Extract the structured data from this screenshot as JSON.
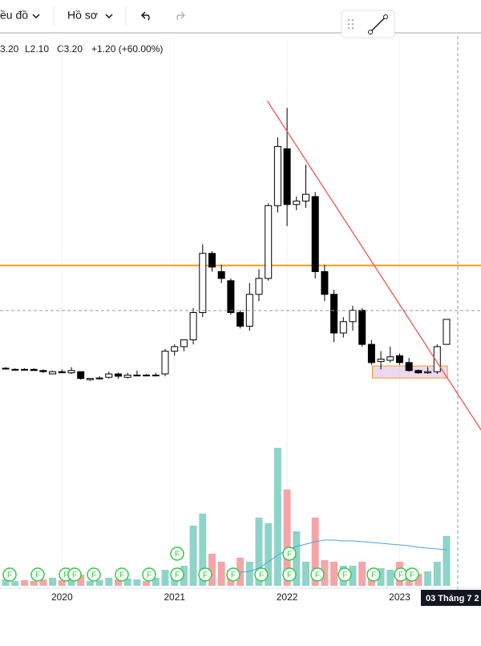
{
  "toolbar": {
    "chart_menu": "ều đồ",
    "profile_menu": "Hồ sơ"
  },
  "legend": {
    "open_high": "3.20",
    "low": "L2.10",
    "close": "C3.20",
    "change": "+1.20 (+60.00%)"
  },
  "crosshair_date": "03 Tháng 7 2",
  "dividend_marker": "F",
  "chart_data": {
    "type": "candlestick",
    "categories": [
      null,
      null,
      null,
      null,
      null,
      null,
      "2020",
      null,
      null,
      null,
      null,
      null,
      null,
      null,
      null,
      null,
      null,
      null,
      "2021",
      null,
      null,
      null,
      null,
      null,
      null,
      null,
      null,
      null,
      null,
      null,
      "2022",
      null,
      null,
      null,
      null,
      null,
      null,
      null,
      null,
      null,
      null,
      null,
      "2023",
      null,
      null,
      null,
      null,
      null
    ],
    "open": [
      1.05,
      1.0,
      1.0,
      1.0,
      0.95,
      0.8,
      0.9,
      0.85,
      0.9,
      0.55,
      0.6,
      0.65,
      0.8,
      0.65,
      0.75,
      0.75,
      0.72,
      0.8,
      1.8,
      2.0,
      2.3,
      3.5,
      6.1,
      5.3,
      4.9,
      3.5,
      2.9,
      4.3,
      5.0,
      8.2,
      10.7,
      8.25,
      8.4,
      8.6,
      5.3,
      4.3,
      2.6,
      3.1,
      3.6,
      2.1,
      1.35,
      1.4,
      1.6,
      1.3,
      0.95,
      0.85,
      0.9,
      2.1
    ],
    "high": [
      1.1,
      1.05,
      1.05,
      1.05,
      1.0,
      0.95,
      1.0,
      1.1,
      0.9,
      0.6,
      0.7,
      0.9,
      0.85,
      0.85,
      0.95,
      0.8,
      0.85,
      1.9,
      2.1,
      2.3,
      3.7,
      6.5,
      6.2,
      5.6,
      5.0,
      3.6,
      4.8,
      5.4,
      8.3,
      11.2,
      12.5,
      8.6,
      10.0,
      8.8,
      5.6,
      4.5,
      3.3,
      3.8,
      3.7,
      2.3,
      1.8,
      2.0,
      1.7,
      1.5,
      1.0,
      1.1,
      2.1,
      3.2
    ],
    "low": [
      1.0,
      0.95,
      0.95,
      0.95,
      0.85,
      0.8,
      0.85,
      0.8,
      0.55,
      0.5,
      0.55,
      0.6,
      0.6,
      0.6,
      0.7,
      0.7,
      0.7,
      0.7,
      1.6,
      1.8,
      2.1,
      3.3,
      5.3,
      4.8,
      3.4,
      2.8,
      2.7,
      4.0,
      4.9,
      7.9,
      7.3,
      8.0,
      8.1,
      5.0,
      4.0,
      2.2,
      2.4,
      2.7,
      2.0,
      1.2,
      1.0,
      1.3,
      1.2,
      0.9,
      0.8,
      0.8,
      0.8,
      2.1
    ],
    "close": [
      1.05,
      1.0,
      0.98,
      0.95,
      0.9,
      0.9,
      0.85,
      0.95,
      0.6,
      0.6,
      0.62,
      0.8,
      0.7,
      0.75,
      0.75,
      0.72,
      0.75,
      1.8,
      2.0,
      2.3,
      3.5,
      6.1,
      5.5,
      5.0,
      3.5,
      2.9,
      4.3,
      5.0,
      8.2,
      10.8,
      8.25,
      8.4,
      8.7,
      5.3,
      4.3,
      2.6,
      3.1,
      3.6,
      2.1,
      1.3,
      1.45,
      1.55,
      1.3,
      0.95,
      0.85,
      0.9,
      2.0,
      3.2
    ],
    "volume": [
      8,
      6,
      7,
      6,
      8,
      10,
      7,
      9,
      14,
      6,
      7,
      10,
      8,
      9,
      8,
      6,
      10,
      20,
      15,
      25,
      75,
      90,
      40,
      30,
      20,
      35,
      30,
      85,
      78,
      172,
      120,
      68,
      30,
      85,
      32,
      30,
      25,
      25,
      30,
      18,
      22,
      20,
      30,
      18,
      15,
      18,
      30,
      62
    ],
    "volume_ma": [
      null,
      null,
      null,
      null,
      null,
      null,
      null,
      null,
      null,
      null,
      null,
      null,
      null,
      null,
      null,
      null,
      null,
      null,
      null,
      null,
      null,
      null,
      null,
      null,
      15,
      17,
      18,
      22,
      30,
      38,
      45,
      49,
      52,
      55,
      57,
      57,
      56,
      56,
      55,
      54,
      53,
      52,
      51,
      50,
      48,
      47,
      46,
      45
    ],
    "ylim": [
      -8.94,
      14.42
    ],
    "vlim": [
      -12,
      650
    ],
    "hline": 5.57,
    "trendline": {
      "from": [
        27.9,
        12.8
      ],
      "to": [
        51.2,
        -1.99
      ]
    },
    "zone": {
      "from": [
        39.1,
        1.15
      ],
      "to": [
        47.1,
        0.62
      ]
    },
    "up_color": "#ffffff",
    "down_color": "#000000",
    "volume_up_color": "#8fd4c8",
    "volume_down_color": "#f5a5a8",
    "ma_color": "#4aa3df",
    "hline_color": "#f39c12",
    "trend_color": "#ef5350"
  }
}
